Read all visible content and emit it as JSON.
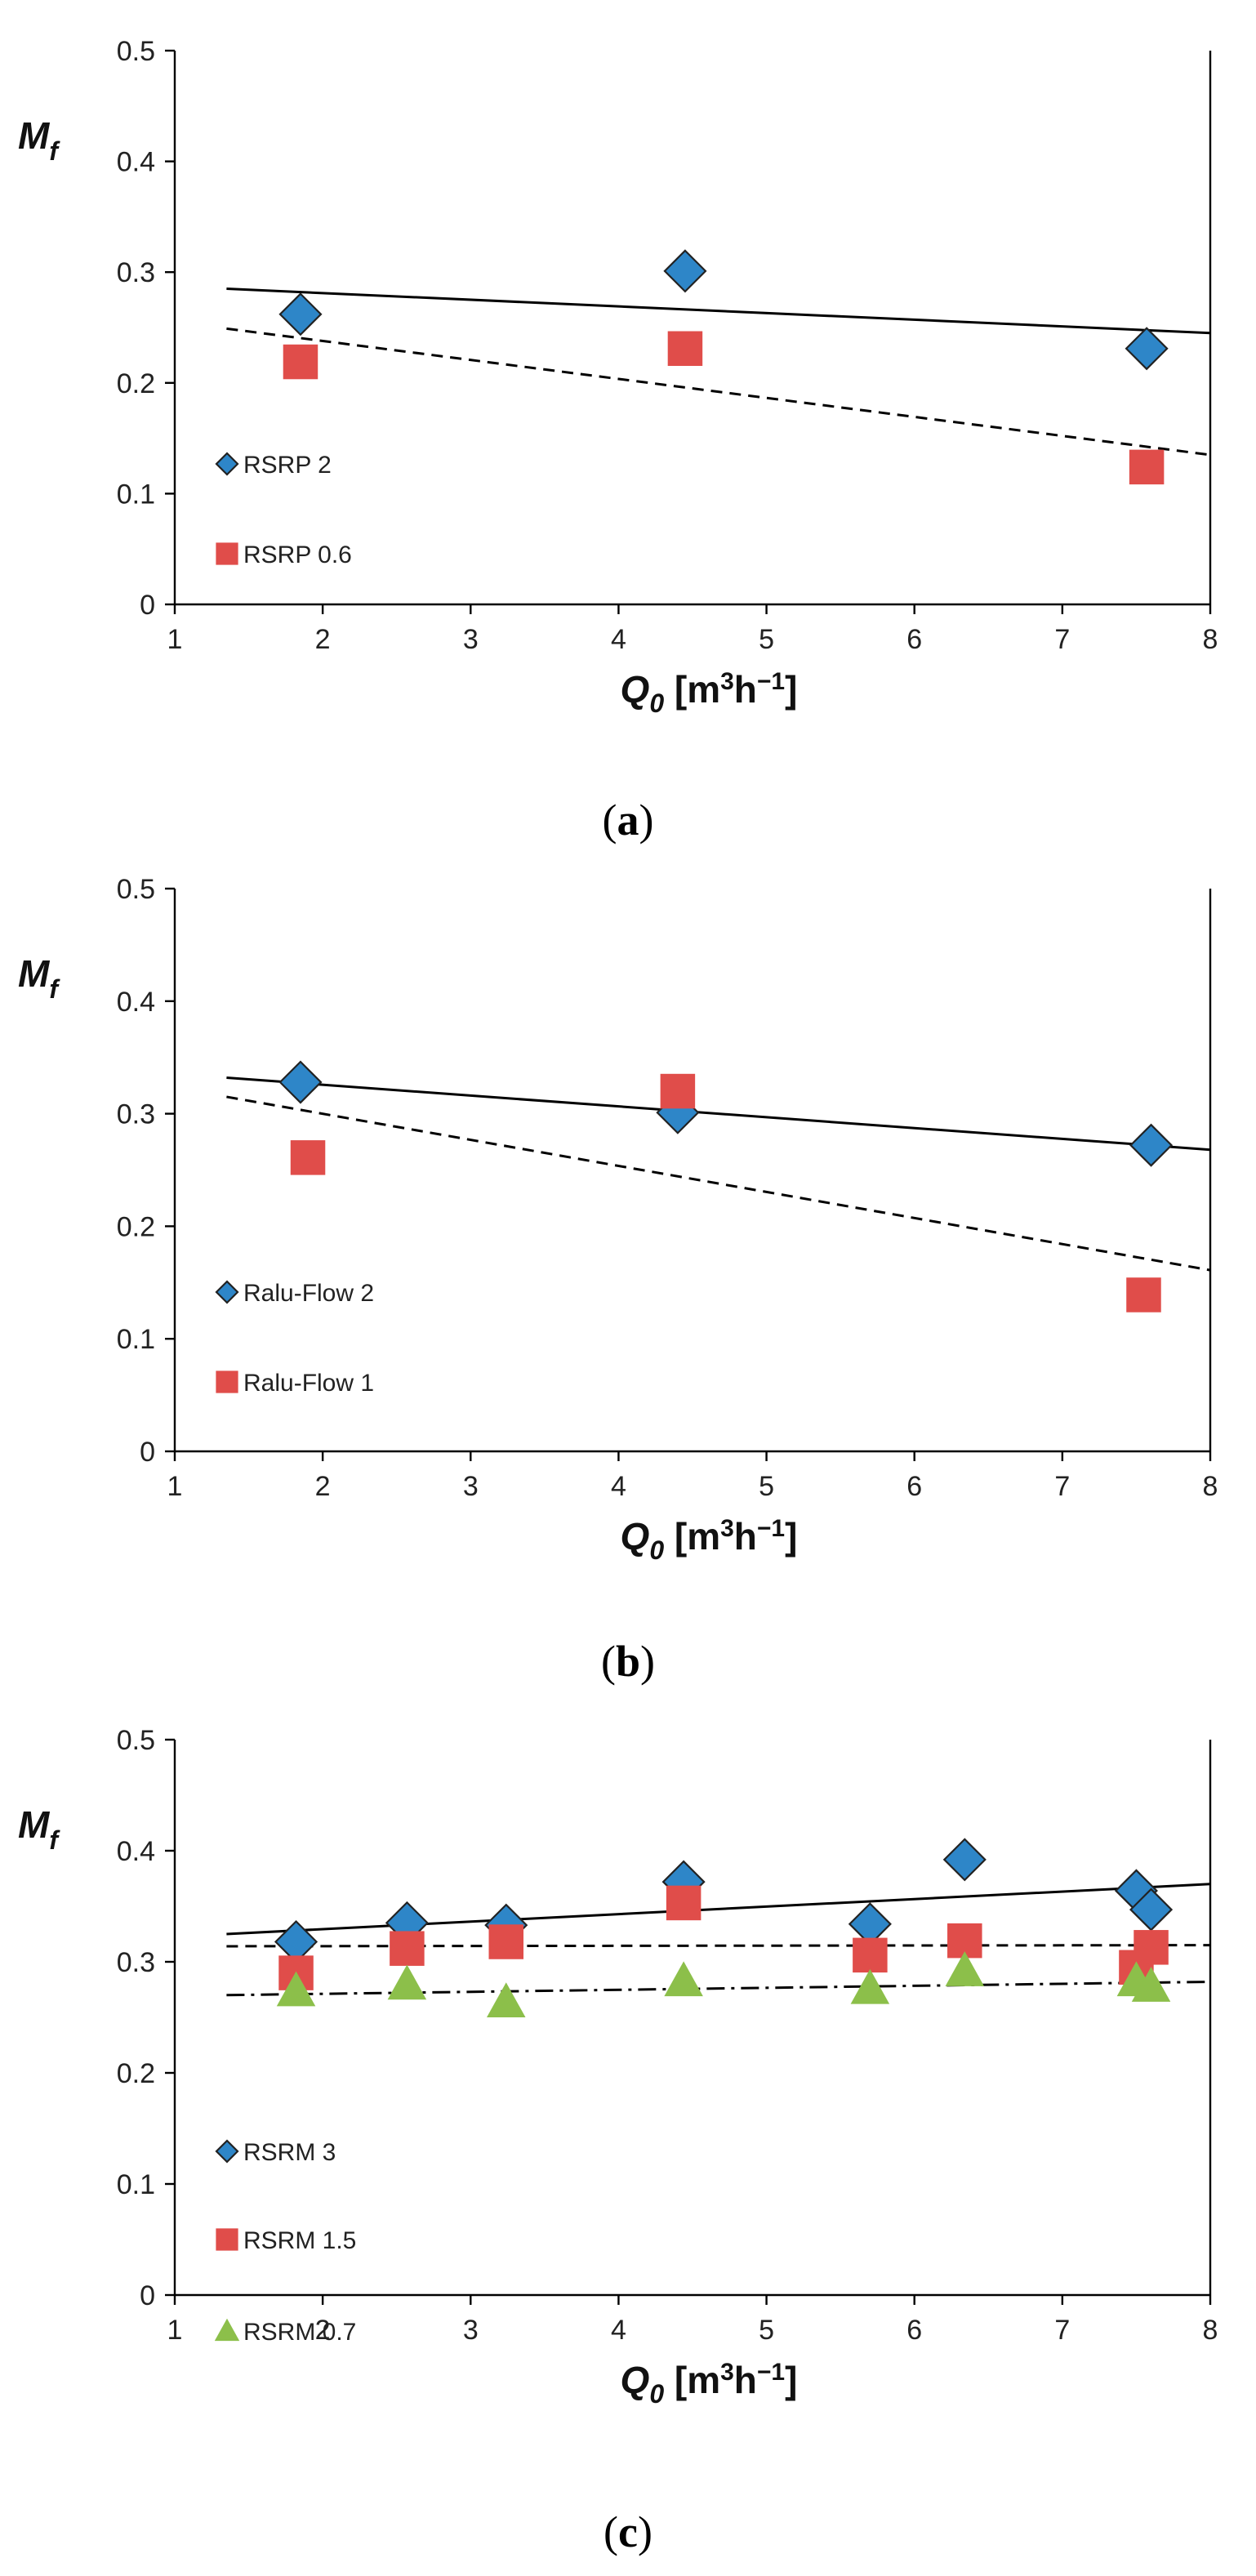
{
  "chart_data": [
    {
      "type": "scatter",
      "panel": "a",
      "caption_open": "(",
      "caption_letter": "a",
      "caption_close": ")",
      "xlabel_main": "Q",
      "xlabel_sub": "0",
      "xlabel_unit_open": " [m",
      "xlabel_unit_sup1": "3",
      "xlabel_unit_mid": "h",
      "xlabel_unit_sup2": "−1",
      "xlabel_unit_close": "]",
      "ylabel_main": "M",
      "ylabel_sub": "f",
      "xlim": [
        1,
        8
      ],
      "ylim": [
        0,
        0.5
      ],
      "xticks": [
        "1",
        "2",
        "3",
        "4",
        "5",
        "6",
        "7",
        "8"
      ],
      "yticks": [
        "0",
        "0.1",
        "0.2",
        "0.3",
        "0.4",
        "0.5"
      ],
      "grid": false,
      "legend_position": "left",
      "series": [
        {
          "name": "RSRP 2",
          "marker": "diamond",
          "color": "#2E86C8",
          "x": [
            1.85,
            4.45,
            7.57
          ],
          "y": [
            0.262,
            0.301,
            0.231
          ],
          "trend": {
            "style": "solid",
            "x": [
              1.35,
              8.0
            ],
            "y": [
              0.285,
              0.245
            ]
          }
        },
        {
          "name": "RSRP 0.6",
          "marker": "square",
          "color": "#E04D4A",
          "x": [
            1.85,
            4.45,
            7.57
          ],
          "y": [
            0.219,
            0.231,
            0.124
          ],
          "trend": {
            "style": "dashed",
            "x": [
              1.35,
              8.0
            ],
            "y": [
              0.249,
              0.135
            ]
          }
        }
      ]
    },
    {
      "type": "scatter",
      "panel": "b",
      "caption_open": "(",
      "caption_letter": "b",
      "caption_close": ")",
      "xlabel_main": "Q",
      "xlabel_sub": "0",
      "xlabel_unit_open": " [m",
      "xlabel_unit_sup1": "3",
      "xlabel_unit_mid": "h",
      "xlabel_unit_sup2": "−1",
      "xlabel_unit_close": "]",
      "ylabel_main": "M",
      "ylabel_sub": "f",
      "xlim": [
        1,
        8
      ],
      "ylim": [
        0,
        0.5
      ],
      "xticks": [
        "1",
        "2",
        "3",
        "4",
        "5",
        "6",
        "7",
        "8"
      ],
      "yticks": [
        "0",
        "0.1",
        "0.2",
        "0.3",
        "0.4",
        "0.5"
      ],
      "grid": false,
      "legend_position": "left",
      "series": [
        {
          "name": "Ralu-Flow 2",
          "marker": "diamond",
          "color": "#2E86C8",
          "x": [
            1.85,
            4.4,
            7.6
          ],
          "y": [
            0.328,
            0.301,
            0.272
          ],
          "trend": {
            "style": "solid",
            "x": [
              1.35,
              8.0
            ],
            "y": [
              0.332,
              0.268
            ]
          }
        },
        {
          "name": "Ralu-Flow 1",
          "marker": "square",
          "color": "#E04D4A",
          "x": [
            1.9,
            4.4,
            7.55
          ],
          "y": [
            0.261,
            0.32,
            0.139
          ],
          "trend": {
            "style": "dashed",
            "x": [
              1.35,
              8.0
            ],
            "y": [
              0.315,
              0.161
            ]
          }
        }
      ]
    },
    {
      "type": "scatter",
      "panel": "c",
      "caption_open": "(",
      "caption_letter": "c",
      "caption_close": ")",
      "xlabel_main": "Q",
      "xlabel_sub": "0",
      "xlabel_unit_open": " [m",
      "xlabel_unit_sup1": "3",
      "xlabel_unit_mid": "h",
      "xlabel_unit_sup2": "−1",
      "xlabel_unit_close": "]",
      "ylabel_main": "M",
      "ylabel_sub": "f",
      "xlim": [
        1,
        8
      ],
      "ylim": [
        0,
        0.5
      ],
      "xticks": [
        "1",
        "2",
        "3",
        "4",
        "5",
        "6",
        "7",
        "8"
      ],
      "yticks": [
        "0",
        "0.1",
        "0.2",
        "0.3",
        "0.4",
        "0.5"
      ],
      "grid": false,
      "legend_position": "left",
      "series": [
        {
          "name": "RSRM 3",
          "marker": "diamond",
          "color": "#2E86C8",
          "x": [
            1.82,
            2.57,
            3.24,
            4.44,
            5.7,
            6.34,
            7.5,
            7.6
          ],
          "y": [
            0.318,
            0.335,
            0.333,
            0.372,
            0.334,
            0.392,
            0.364,
            0.347
          ],
          "trend": {
            "style": "solid",
            "x": [
              1.35,
              8.0
            ],
            "y": [
              0.325,
              0.37
            ]
          }
        },
        {
          "name": "RSRM 1.5",
          "marker": "square",
          "color": "#E04D4A",
          "x": [
            1.82,
            2.57,
            3.24,
            4.44,
            5.7,
            6.34,
            7.5,
            7.6
          ],
          "y": [
            0.29,
            0.312,
            0.318,
            0.353,
            0.306,
            0.319,
            0.295,
            0.313
          ],
          "trend": {
            "style": "dashed",
            "x": [
              1.35,
              8.0
            ],
            "y": [
              0.314,
              0.315
            ]
          }
        },
        {
          "name": "RSRM 0.7",
          "marker": "triangle",
          "color": "#8CBF4A",
          "x": [
            1.82,
            2.57,
            3.24,
            4.44,
            5.7,
            6.34,
            7.5,
            7.6
          ],
          "y": [
            0.274,
            0.28,
            0.264,
            0.283,
            0.276,
            0.292,
            0.283,
            0.278
          ],
          "trend": {
            "style": "dashdot",
            "x": [
              1.35,
              8.0
            ],
            "y": [
              0.27,
              0.282
            ]
          }
        }
      ]
    }
  ]
}
